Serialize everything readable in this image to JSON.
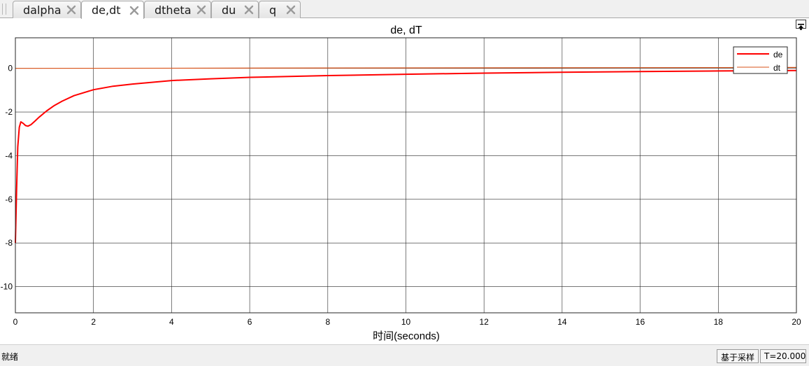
{
  "tabs": [
    {
      "label": "dalpha",
      "active": false
    },
    {
      "label": "de,dt",
      "active": true
    },
    {
      "label": "dtheta",
      "active": false
    },
    {
      "label": "du",
      "active": false
    },
    {
      "label": "q",
      "active": false
    }
  ],
  "status": {
    "text": "就绪",
    "sampling_mode": "基于采样",
    "time_readout": "T=20.000"
  },
  "chart_data": {
    "type": "line",
    "title": "de, dT",
    "xlabel": "时间(seconds)",
    "ylabel": "",
    "xlim": [
      0,
      20
    ],
    "ylim": [
      -11.2,
      1.4
    ],
    "xticks": [
      0,
      2,
      4,
      6,
      8,
      10,
      12,
      14,
      16,
      18,
      20
    ],
    "yticks": [
      0,
      -2,
      -4,
      -6,
      -8,
      -10
    ],
    "grid": true,
    "legend_position": "top-right",
    "series": [
      {
        "name": "de",
        "color": "#ff0000",
        "x": [
          0,
          0.03,
          0.06,
          0.1,
          0.14,
          0.2,
          0.26,
          0.32,
          0.4,
          0.5,
          0.6,
          0.8,
          1.0,
          1.2,
          1.5,
          2.0,
          2.5,
          3.0,
          4.0,
          5.0,
          6.0,
          8.0,
          10.0,
          12.0,
          14.0,
          16.0,
          18.0,
          20.0
        ],
        "y": [
          -8.0,
          -5.6,
          -3.6,
          -2.7,
          -2.45,
          -2.52,
          -2.62,
          -2.65,
          -2.58,
          -2.42,
          -2.25,
          -1.95,
          -1.7,
          -1.5,
          -1.25,
          -0.98,
          -0.82,
          -0.72,
          -0.56,
          -0.48,
          -0.41,
          -0.33,
          -0.27,
          -0.22,
          -0.18,
          -0.15,
          -0.12,
          -0.1
        ]
      },
      {
        "name": "dt",
        "color": "#d95319",
        "x": [
          0,
          20
        ],
        "y": [
          0.0,
          0.04
        ]
      }
    ]
  }
}
